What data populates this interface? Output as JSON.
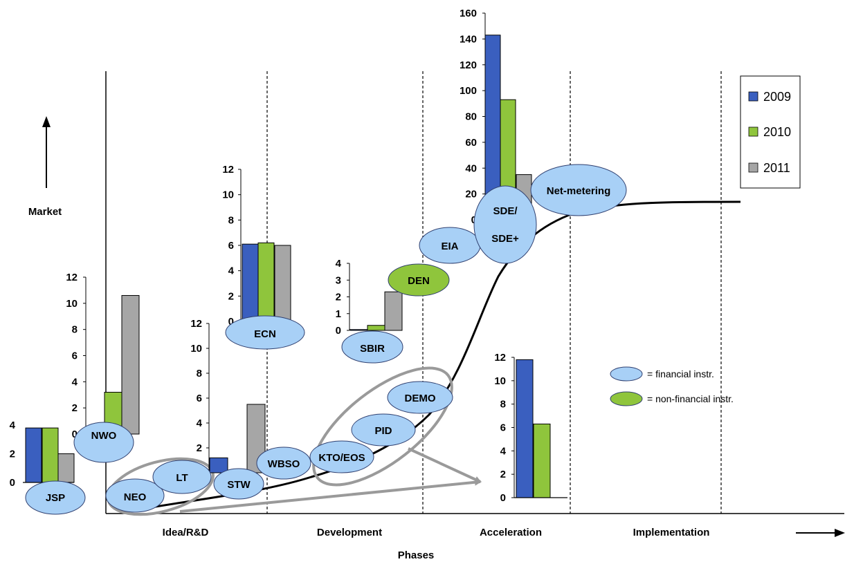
{
  "colors": {
    "series_2009": "#3a5fbf",
    "series_2010": "#8fc53c",
    "series_2011": "#a6a6a6",
    "financial_instrument": "#a8d0f6",
    "non_financial_instrument": "#8fc53c"
  },
  "chart_data": {
    "type": "bar",
    "title": "",
    "xlabel": "Phases",
    "ylabel": "Market",
    "phases": [
      "Idea/R&D",
      "Development",
      "Acceleration",
      "Implementation"
    ],
    "legend": {
      "series": [
        "2009",
        "2010",
        "2011"
      ],
      "placement": "top-right"
    },
    "key": {
      "financial": "= financial instr.",
      "non_financial": "= non-financial instr."
    },
    "instruments": {
      "JSP": "JSP",
      "NWO": "NWO",
      "NEO": "NEO",
      "LT": "LT",
      "STW": "STW",
      "ECN": "ECN",
      "WBSO": "WBSO",
      "KTO": "KTO/EOS",
      "PID": "PID",
      "DEMO": "DEMO",
      "SBIR": "SBIR",
      "DEN": "DEN",
      "EIA": "EIA",
      "SDE1": "SDE/",
      "SDE2": "SDE+",
      "NM": "Net-metering"
    },
    "bar_groups": [
      {
        "id": "jsp",
        "instrument": "JSP",
        "ticks": [
          "0",
          "2",
          "4"
        ],
        "ylim": [
          0,
          4
        ],
        "series": [
          {
            "name": "2009",
            "value": 3.8
          },
          {
            "name": "2010",
            "value": 3.8
          },
          {
            "name": "2011",
            "value": 2.0
          }
        ]
      },
      {
        "id": "nwo",
        "instrument": "NWO",
        "ticks": [
          "0",
          "2",
          "4",
          "6",
          "8",
          "10",
          "12"
        ],
        "ylim": [
          0,
          12
        ],
        "series": [
          {
            "name": "2009",
            "value": 0.3
          },
          {
            "name": "2010",
            "value": 3.2
          },
          {
            "name": "2011",
            "value": 10.6
          }
        ]
      },
      {
        "id": "stw",
        "instrument": "STW",
        "ticks": [
          "2",
          "4",
          "6",
          "8",
          "10",
          "12"
        ],
        "ylim": [
          0,
          12
        ],
        "series": [
          {
            "name": "2009",
            "value": 1.2
          },
          {
            "name": "2011",
            "value": 5.5
          }
        ]
      },
      {
        "id": "ecn",
        "instrument": "ECN",
        "ticks": [
          "0",
          "2",
          "4",
          "6",
          "8",
          "10",
          "12"
        ],
        "ylim": [
          0,
          12
        ],
        "series": [
          {
            "name": "2009",
            "value": 6.1
          },
          {
            "name": "2010",
            "value": 6.2
          },
          {
            "name": "2011",
            "value": 6.0
          }
        ]
      },
      {
        "id": "sbir",
        "instrument": "SBIR",
        "ticks": [
          "0",
          "1",
          "2",
          "3",
          "4"
        ],
        "ylim": [
          0,
          4
        ],
        "series": [
          {
            "name": "2009",
            "value": 0.05
          },
          {
            "name": "2010",
            "value": 0.3
          },
          {
            "name": "2011",
            "value": 2.3
          }
        ]
      },
      {
        "id": "sde",
        "instrument": "SDE/SDE+",
        "ticks": [
          "0",
          "20",
          "40",
          "60",
          "80",
          "100",
          "120",
          "140",
          "160"
        ],
        "ylim": [
          0,
          160
        ],
        "series": [
          {
            "name": "2009",
            "value": 143
          },
          {
            "name": "2010",
            "value": 93
          },
          {
            "name": "2011",
            "value": 35
          }
        ]
      },
      {
        "id": "kto",
        "instrument": "KTO/EOS, PID, DEMO",
        "ticks": [
          "0",
          "2",
          "4",
          "6",
          "8",
          "10",
          "12"
        ],
        "ylim": [
          0,
          12
        ],
        "series": [
          {
            "name": "2009",
            "value": 11.8
          },
          {
            "name": "2010",
            "value": 6.3
          }
        ]
      }
    ],
    "s_curve": {
      "description_level": "adoption curve across phases"
    }
  }
}
